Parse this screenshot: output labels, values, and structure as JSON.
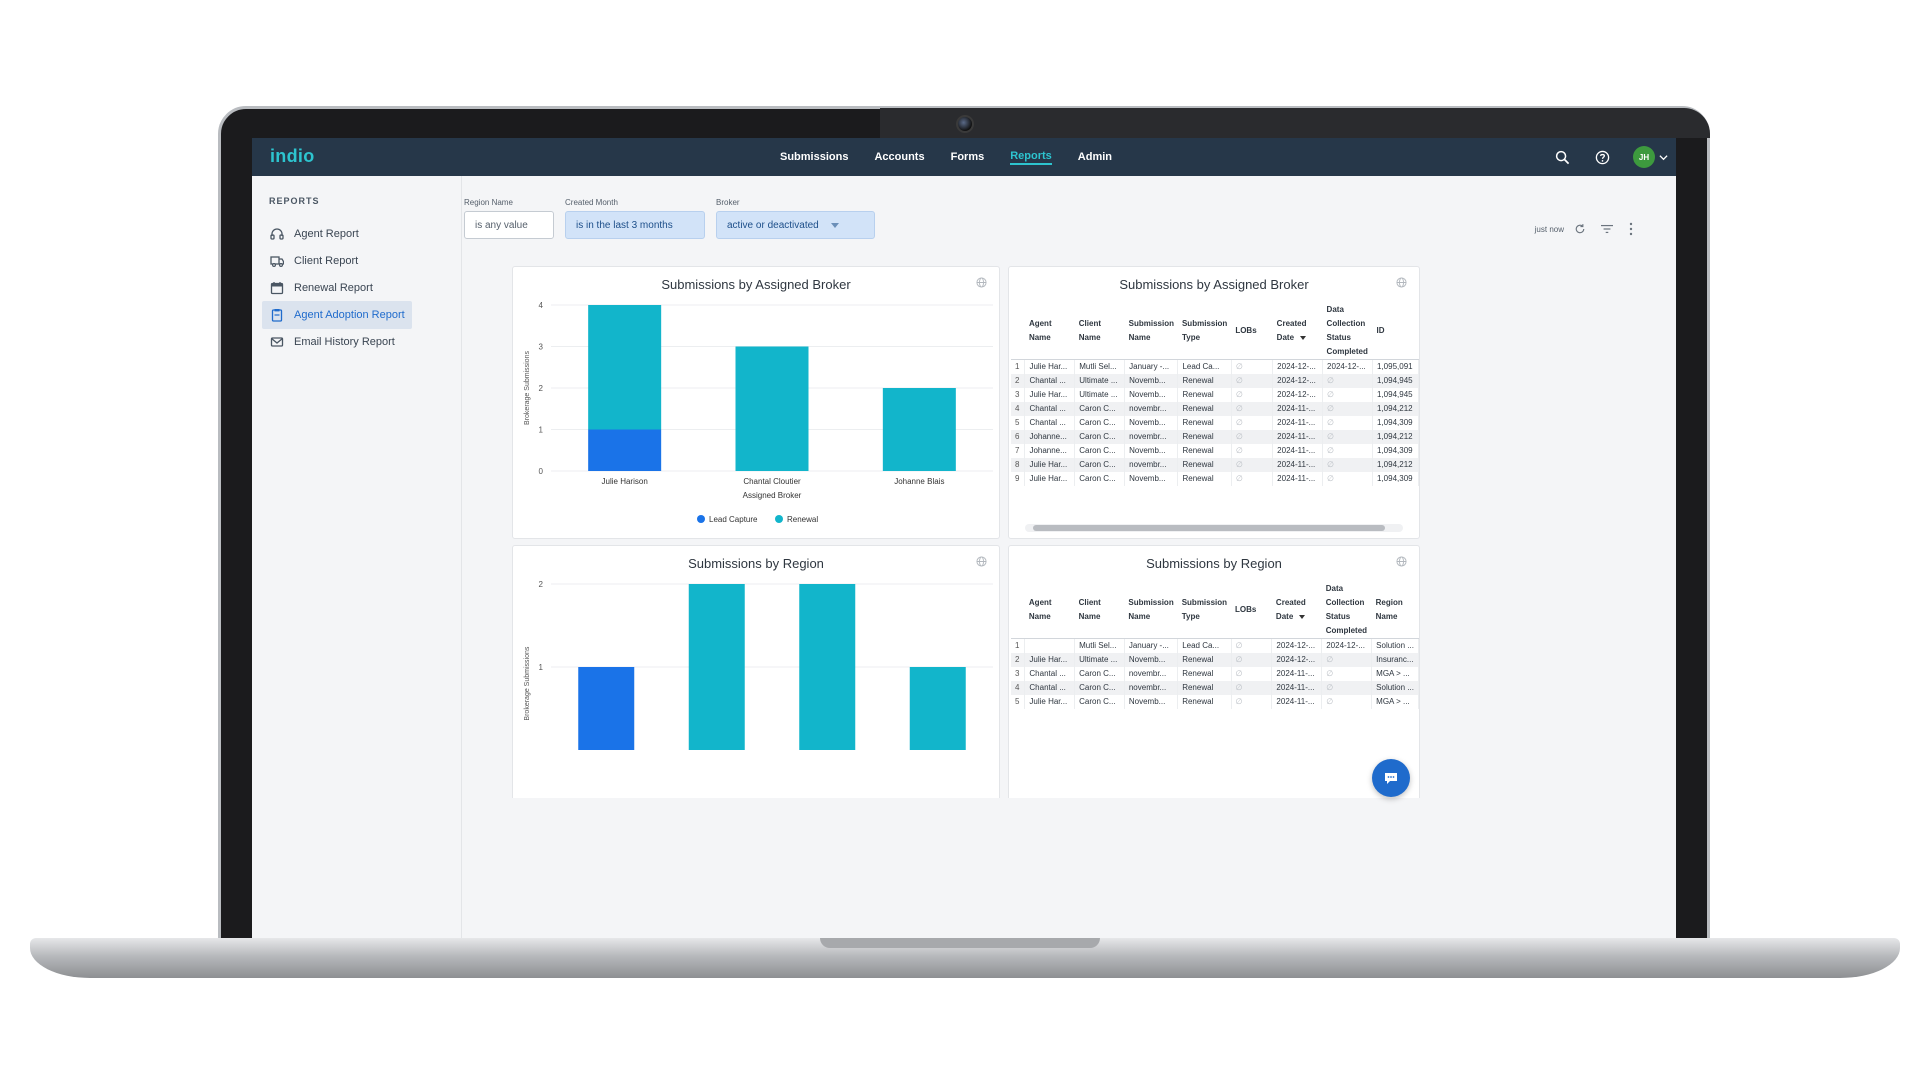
{
  "app": {
    "logo": "indio"
  },
  "nav": {
    "links": [
      {
        "label": "Submissions",
        "active": false
      },
      {
        "label": "Accounts",
        "active": false
      },
      {
        "label": "Forms",
        "active": false
      },
      {
        "label": "Reports",
        "active": true
      },
      {
        "label": "Admin",
        "active": false
      }
    ],
    "avatar_initials": "JH"
  },
  "sidebar": {
    "heading": "REPORTS",
    "items": [
      {
        "label": "Agent Report",
        "icon": "headset-icon",
        "active": false
      },
      {
        "label": "Client Report",
        "icon": "truck-icon",
        "active": false
      },
      {
        "label": "Renewal Report",
        "icon": "calendar-icon",
        "active": false
      },
      {
        "label": "Agent Adoption Report",
        "icon": "clipboard-icon",
        "active": true
      },
      {
        "label": "Email History Report",
        "icon": "mail-icon",
        "active": false
      }
    ]
  },
  "filters": {
    "region": {
      "label": "Region Name",
      "value": "is any value"
    },
    "month": {
      "label": "Created Month",
      "value": "is in the last 3 months"
    },
    "broker": {
      "label": "Broker",
      "value": "active or deactivated"
    }
  },
  "toolbar": {
    "refreshed": "just now"
  },
  "colors": {
    "lead_capture": "#1a73e8",
    "renewal": "#12b5cb",
    "nav_bg": "#263749",
    "accent": "#2dc4cf"
  },
  "chart1": {
    "title": "Submissions by Assigned Broker",
    "chart_data": {
      "type": "bar",
      "stacked": true,
      "categories": [
        "Julie Harison",
        "Chantal Cloutier",
        "Johanne Blais"
      ],
      "series": [
        {
          "name": "Lead Capture",
          "values": [
            1,
            0,
            0
          ]
        },
        {
          "name": "Renewal",
          "values": [
            3,
            3,
            2
          ]
        }
      ],
      "ylabel": "Brokerage Submissions",
      "xlabel": "Assigned Broker",
      "ylim": [
        0,
        4
      ],
      "yticks": [
        "0",
        "1",
        "2",
        "3",
        "4"
      ],
      "legend": "bottom"
    }
  },
  "table1": {
    "title": "Submissions by Assigned Broker",
    "columns": [
      "Agent Name",
      "Client Name",
      "Submission Name",
      "Submission Type",
      "LOBs",
      "Created Date",
      "Data Collection Status Completed",
      "ID"
    ],
    "rows": [
      [
        "1",
        "Julie Har...",
        "Mutli Sel...",
        "January -...",
        "Lead Ca...",
        "∅",
        "2024-12-...",
        "2024-12-...",
        "1,095,091"
      ],
      [
        "2",
        "Chantal ...",
        "Ultimate ...",
        "Novemb...",
        "Renewal",
        "∅",
        "2024-12-...",
        "∅",
        "1,094,945"
      ],
      [
        "3",
        "Julie Har...",
        "Ultimate ...",
        "Novemb...",
        "Renewal",
        "∅",
        "2024-12-...",
        "∅",
        "1,094,945"
      ],
      [
        "4",
        "Chantal ...",
        "Caron C...",
        "novembr...",
        "Renewal",
        "∅",
        "2024-11-...",
        "∅",
        "1,094,212"
      ],
      [
        "5",
        "Chantal ...",
        "Caron C...",
        "Novemb...",
        "Renewal",
        "∅",
        "2024-11-...",
        "∅",
        "1,094,309"
      ],
      [
        "6",
        "Johanne...",
        "Caron C...",
        "novembr...",
        "Renewal",
        "∅",
        "2024-11-...",
        "∅",
        "1,094,212"
      ],
      [
        "7",
        "Johanne...",
        "Caron C...",
        "Novemb...",
        "Renewal",
        "∅",
        "2024-11-...",
        "∅",
        "1,094,309"
      ],
      [
        "8",
        "Julie Har...",
        "Caron C...",
        "novembr...",
        "Renewal",
        "∅",
        "2024-11-...",
        "∅",
        "1,094,212"
      ],
      [
        "9",
        "Julie Har...",
        "Caron C...",
        "Novemb...",
        "Renewal",
        "∅",
        "2024-11-...",
        "∅",
        "1,094,309"
      ]
    ]
  },
  "chart2": {
    "title": "Submissions by Region",
    "chart_data": {
      "type": "bar",
      "series_colors": [
        "#1a73e8",
        "#12b5cb",
        "#12b5cb",
        "#12b5cb"
      ],
      "values": [
        1,
        2,
        2,
        1
      ],
      "ylabel": "Brokerage Submissions",
      "yticks_visible": [
        "1",
        "2"
      ],
      "ylim": [
        0,
        2
      ]
    }
  },
  "table2": {
    "title": "Submissions by Region",
    "columns": [
      "Agent Name",
      "Client Name",
      "Submission Name",
      "Submission Type",
      "LOBs",
      "Created Date",
      "Data Collection Status Completed",
      "Region Name"
    ],
    "rows": [
      [
        "1",
        "",
        "Mutli Sel...",
        "January -...",
        "Lead Ca...",
        "∅",
        "2024-12-...",
        "2024-12-...",
        "Solution ..."
      ],
      [
        "2",
        "Julie Har...",
        "Ultimate ...",
        "Novemb...",
        "Renewal",
        "∅",
        "2024-12-...",
        "∅",
        "Insuranc..."
      ],
      [
        "3",
        "Chantal ...",
        "Caron C...",
        "novembr...",
        "Renewal",
        "∅",
        "2024-11-...",
        "∅",
        "MGA > ..."
      ],
      [
        "4",
        "Chantal ...",
        "Caron C...",
        "novembr...",
        "Renewal",
        "∅",
        "2024-11-...",
        "∅",
        "Solution ..."
      ],
      [
        "5",
        "Julie Har...",
        "Caron C...",
        "Novemb...",
        "Renewal",
        "∅",
        "2024-11-...",
        "∅",
        "MGA > ..."
      ]
    ]
  }
}
